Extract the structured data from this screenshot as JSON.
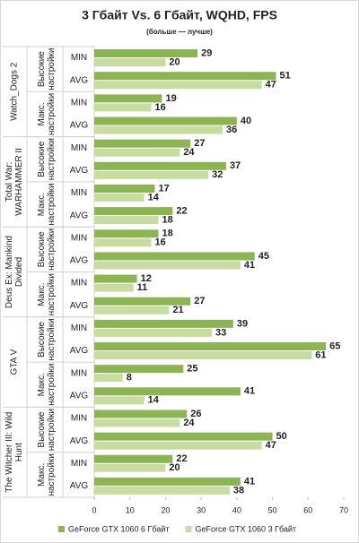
{
  "chart_data": {
    "type": "bar",
    "orientation": "horizontal",
    "title": "3 Гбайт Vs. 6 Гбайт, WQHD, FPS",
    "subtitle": "(больше — лучше)",
    "groups": [
      {
        "name": [
          "Watch_Dogs 2"
        ],
        "subgroups": [
          [
            "Высокие",
            "настройки"
          ],
          [
            "Макс.",
            "настройки"
          ]
        ]
      },
      {
        "name": [
          "Total War:",
          "WARHAMMER II"
        ],
        "subgroups": [
          [
            "Высокие",
            "настройки"
          ],
          [
            "Макс.",
            "настройки"
          ]
        ]
      },
      {
        "name": [
          "Deus Ex: Mankind",
          "Divided"
        ],
        "subgroups": [
          [
            "Высокие",
            "настройки"
          ],
          [
            "Макс.",
            "настройки"
          ]
        ]
      },
      {
        "name": [
          "GTA V"
        ],
        "subgroups": [
          [
            "Высокие",
            "настройки"
          ],
          [
            "Макс.",
            "настройки"
          ]
        ]
      },
      {
        "name": [
          "The Witcher III: Wild",
          "Hunt"
        ],
        "subgroups": [
          [
            "Высокие",
            "настройки"
          ],
          [
            "Макс.",
            "настройки"
          ]
        ]
      }
    ],
    "categories": [
      "MIN",
      "AVG",
      "MIN",
      "AVG",
      "MIN",
      "AVG",
      "MIN",
      "AVG",
      "MIN",
      "AVG",
      "MIN",
      "AVG",
      "MIN",
      "AVG",
      "MIN",
      "AVG",
      "MIN",
      "AVG",
      "MIN",
      "AVG"
    ],
    "series": [
      {
        "name": "GeForce GTX 1060 6 Гбайт",
        "color": "#8cb453",
        "values": [
          29,
          51,
          19,
          40,
          27,
          37,
          17,
          22,
          18,
          45,
          12,
          27,
          39,
          65,
          25,
          41,
          26,
          50,
          22,
          41
        ]
      },
      {
        "name": "GeForce GTX 1060 3 Гбайт",
        "color": "#c6dca0",
        "values": [
          20,
          47,
          16,
          36,
          24,
          32,
          14,
          18,
          16,
          41,
          11,
          21,
          33,
          61,
          8,
          14,
          24,
          47,
          20,
          38
        ]
      }
    ],
    "xlim": [
      0,
      70
    ],
    "xticks": [
      0,
      10,
      20,
      30,
      40,
      50,
      60,
      70
    ],
    "grid": false,
    "legend": "bottom"
  }
}
